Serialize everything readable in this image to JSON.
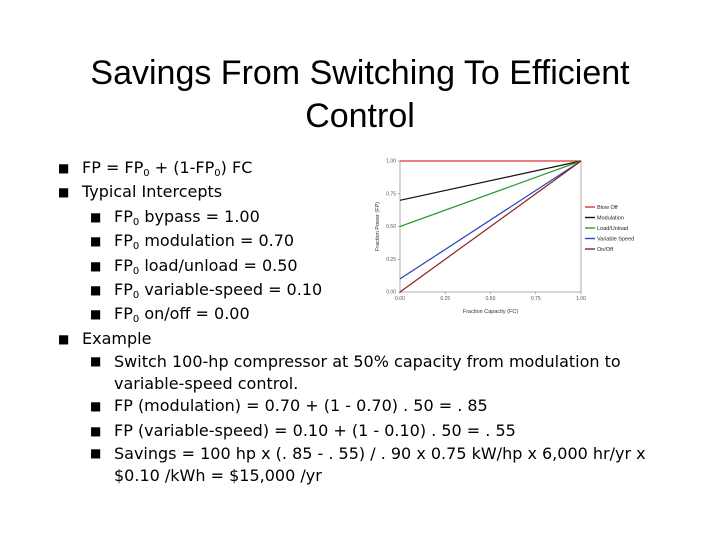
{
  "title": {
    "line1": "Savings From Switching To Efficient",
    "line2": "Control"
  },
  "bullets": {
    "fp_formula": {
      "a": "FP = FP",
      "sub1": "0",
      "b": " + (1-FP",
      "sub2": "0",
      "c": ") FC"
    },
    "typical_intercepts": "Typical Intercepts",
    "intercepts": [
      {
        "pre": "FP",
        "sub": "0",
        "text": " bypass = 1.00"
      },
      {
        "pre": "FP",
        "sub": "0",
        "text": " modulation = 0.70"
      },
      {
        "pre": "FP",
        "sub": "0",
        "text": " load/unload = 0.50"
      },
      {
        "pre": "FP",
        "sub": "0",
        "text": " variable-speed = 0.10"
      },
      {
        "pre": "FP",
        "sub": "0",
        "text": " on/off = 0.00"
      }
    ],
    "example": "Example",
    "example_items": [
      "Switch 100-hp compressor at 50% capacity from modulation to variable-speed control.",
      "FP (modulation) = 0.70 + (1 - 0.70) . 50 = . 85",
      "FP (variable-speed) = 0.10 + (1 - 0.10) . 50 = . 55",
      "Savings = 100 hp x (. 85 - . 55) / . 90 x 0.75 kW/hp x  6,000 hr/yr x $0.10 /kWh = $15,000 /yr"
    ]
  },
  "chart_data": {
    "type": "line",
    "xlabel": "Fraction Capacity (FC)",
    "ylabel": "Fraction Power (FP)",
    "xlim": [
      0,
      1
    ],
    "ylim": [
      0,
      1
    ],
    "x_ticks": [
      "0.00",
      "0.25",
      "0.50",
      "0.75",
      "1.00"
    ],
    "y_ticks": [
      "0.00",
      "0.25",
      "0.50",
      "0.75",
      "1.00"
    ],
    "legend_position": "right",
    "grid": false,
    "series": [
      {
        "name": "Blow Off",
        "color": "#e03030",
        "x": [
          0,
          1
        ],
        "y": [
          1.0,
          1.0
        ]
      },
      {
        "name": "Modulation",
        "color": "#111111",
        "x": [
          0,
          1
        ],
        "y": [
          0.7,
          1.0
        ]
      },
      {
        "name": "Load/Unload",
        "color": "#2e9a2e",
        "x": [
          0,
          1
        ],
        "y": [
          0.5,
          1.0
        ]
      },
      {
        "name": "Variable Speed",
        "color": "#2244bb",
        "x": [
          0,
          1
        ],
        "y": [
          0.1,
          1.0
        ]
      },
      {
        "name": "On/Off",
        "color": "#8b2020",
        "x": [
          0,
          1
        ],
        "y": [
          0.0,
          1.0
        ]
      }
    ]
  }
}
